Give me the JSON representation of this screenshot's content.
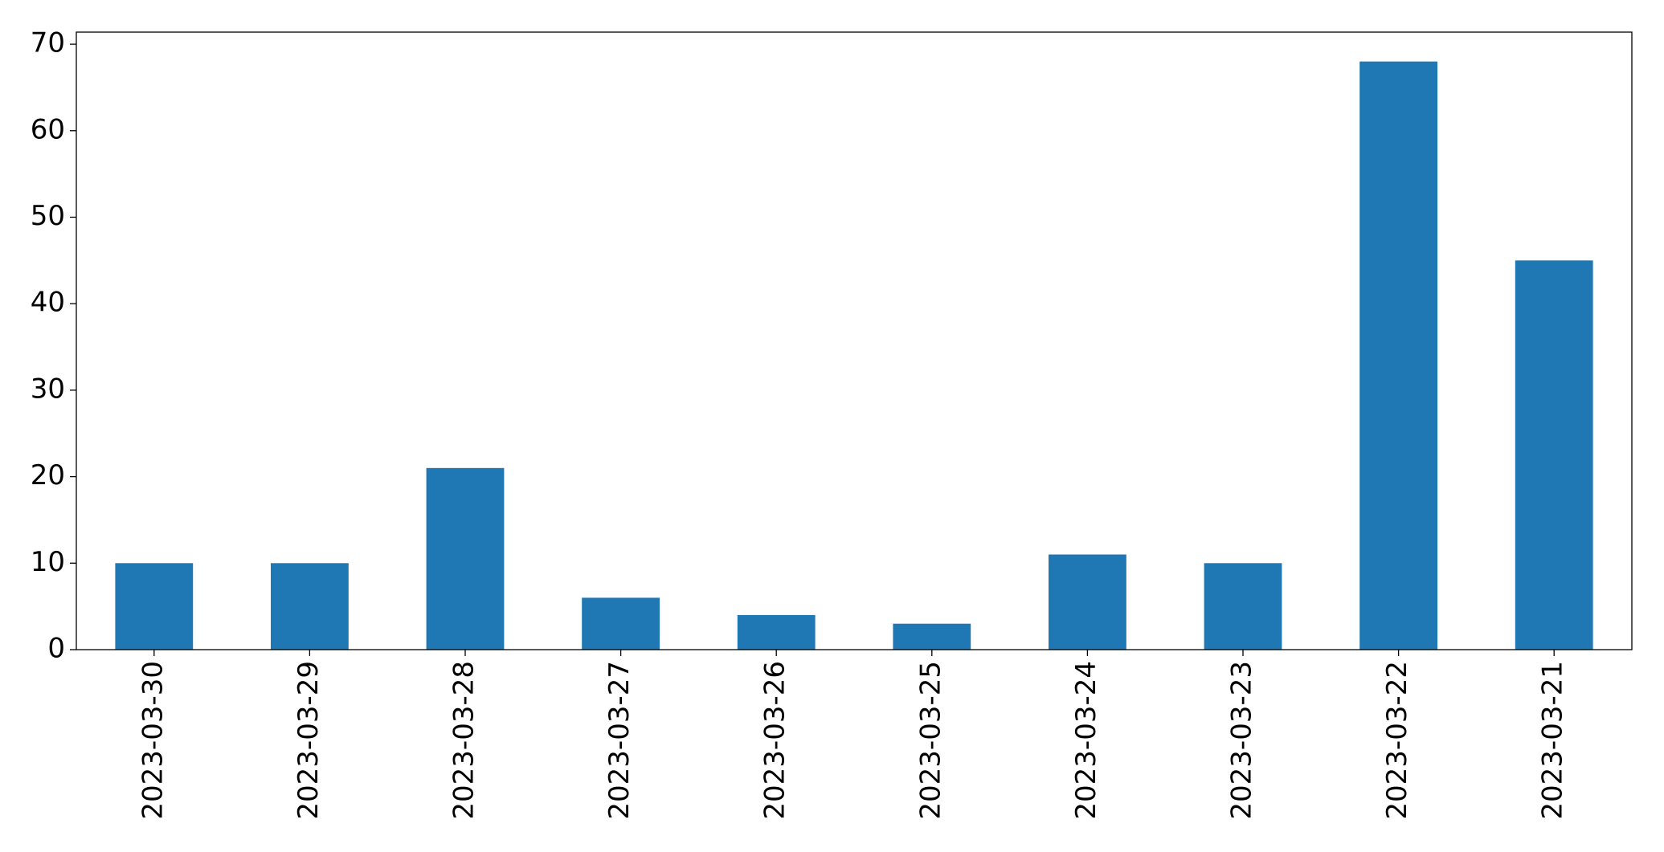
{
  "chart_data": {
    "type": "bar",
    "categories": [
      "2023-03-30",
      "2023-03-29",
      "2023-03-28",
      "2023-03-27",
      "2023-03-26",
      "2023-03-25",
      "2023-03-24",
      "2023-03-23",
      "2023-03-22",
      "2023-03-21"
    ],
    "values": [
      10,
      10,
      21,
      6,
      4,
      3,
      11,
      10,
      68,
      45
    ],
    "color": "#1f77b4",
    "ylim": [
      0,
      71.4
    ],
    "yticks": [
      0,
      10,
      20,
      30,
      40,
      50,
      60,
      70
    ],
    "grid": false
  }
}
